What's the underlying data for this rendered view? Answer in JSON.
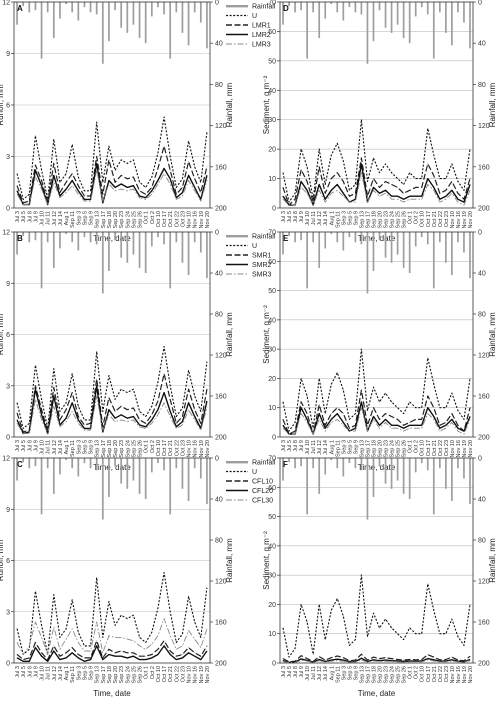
{
  "chart_data": {
    "type": "line",
    "x_axis_label": "Time, date",
    "x_categories": [
      "Jul 3",
      "Jul 5",
      "Jul 8",
      "Jul 9",
      "Jul 10",
      "Jul 11",
      "Jul 12",
      "Jul 14",
      "Aug 1",
      "Sep 11",
      "Sep 3",
      "Sep 5",
      "Sep 9",
      "Sep 13",
      "Sep 17",
      "Sep 18",
      "Sep 20",
      "Sep 23",
      "Sep 24",
      "Sep 25",
      "Sep 26",
      "Oct 1",
      "Oct 2",
      "Oct 10",
      "Oct 17",
      "Oct 21",
      "Oct 22",
      "Oct 23",
      "Nov 10",
      "Nov 16",
      "Nov 19",
      "Nov 20"
    ],
    "rainfall_mm": [
      22,
      4,
      10,
      8,
      55,
      10,
      35,
      16,
      2,
      10,
      18,
      5,
      10,
      12,
      60,
      38,
      8,
      25,
      30,
      22,
      35,
      40,
      14,
      5,
      12,
      55,
      10,
      30,
      42,
      10,
      20,
      45
    ],
    "rainfall_axis": {
      "label": "Rainfall, mm",
      "range": [
        0,
        200
      ],
      "ticks": [
        0,
        40,
        80,
        120,
        160,
        200
      ],
      "inverted": true
    },
    "panels": [
      {
        "letter": "A",
        "ylabel": "Runoff, mm",
        "ylim": [
          0,
          12
        ],
        "yticks": [
          0,
          3,
          6,
          9,
          12
        ],
        "legend": [
          "Rainfall",
          "U",
          "LMR1",
          "LMR2",
          "LMR3"
        ],
        "series": [
          {
            "name": "U",
            "values": [
              2.0,
              0.5,
              0.8,
              4.2,
              2.2,
              0.5,
              4.0,
              1.5,
              2.0,
              3.7,
              1.8,
              1.0,
              1.0,
              5.0,
              1.5,
              3.6,
              2.2,
              2.8,
              2.6,
              2.8,
              1.5,
              1.2,
              1.8,
              3.2,
              5.3,
              3.0,
              1.2,
              1.7,
              3.9,
              2.4,
              1.5,
              4.4
            ]
          },
          {
            "name": "LMR1",
            "values": [
              1.3,
              0.3,
              0.4,
              2.5,
              1.6,
              0.3,
              2.6,
              0.9,
              1.5,
              2.0,
              1.3,
              0.7,
              0.7,
              3.0,
              0.8,
              2.8,
              1.5,
              1.9,
              1.7,
              1.8,
              1.0,
              0.8,
              1.2,
              2.3,
              3.6,
              2.2,
              0.8,
              1.2,
              2.7,
              1.7,
              0.9,
              2.4
            ]
          },
          {
            "name": "LMR2",
            "values": [
              1.0,
              0.2,
              0.2,
              2.2,
              1.3,
              0.2,
              1.9,
              0.7,
              1.1,
              1.6,
              1.0,
              0.5,
              0.5,
              2.6,
              0.3,
              1.6,
              1.2,
              1.4,
              1.2,
              1.3,
              0.7,
              0.6,
              1.0,
              1.6,
              2.3,
              1.7,
              0.6,
              0.9,
              1.9,
              1.2,
              0.5,
              1.9
            ]
          },
          {
            "name": "LMR3",
            "values": [
              0.8,
              0.2,
              0.2,
              1.8,
              1.1,
              0.2,
              1.5,
              0.6,
              0.9,
              1.3,
              0.8,
              0.4,
              0.4,
              2.2,
              0.4,
              1.4,
              1.0,
              1.1,
              1.0,
              1.1,
              0.6,
              0.5,
              0.8,
              1.4,
              2.0,
              1.4,
              0.5,
              0.7,
              1.6,
              1.0,
              0.4,
              1.6
            ]
          }
        ]
      },
      {
        "letter": "D",
        "ylabel": "Sediment, g m⁻²",
        "ylim": [
          0,
          70
        ],
        "yticks": [
          0,
          10,
          20,
          30,
          40,
          50,
          60,
          70
        ],
        "legend": [],
        "series": [
          {
            "name": "U",
            "values": [
              12,
              2,
              5,
              20,
              14,
              3,
              20,
              8,
              18,
              22,
              16,
              6,
              8,
              30,
              9,
              17,
              12,
              15,
              12,
              10,
              8,
              12,
              10,
              10,
              27,
              18,
              10,
              10,
              15,
              9,
              6,
              20
            ]
          },
          {
            "name": "LMR1",
            "values": [
              7,
              1,
              3,
              13,
              9,
              2,
              14,
              5,
              10,
              12,
              9,
              4,
              5,
              17,
              4,
              10,
              7,
              9,
              8,
              7,
              5,
              6,
              7,
              7,
              15,
              11,
              5,
              6,
              9,
              5,
              3,
              10
            ]
          },
          {
            "name": "LMR2",
            "values": [
              4,
              1,
              1,
              9,
              6,
              1,
              8,
              3,
              6,
              8,
              5,
              2,
              3,
              15,
              2,
              7,
              5,
              6,
              4,
              4,
              3,
              4,
              4,
              4,
              10,
              7,
              3,
              4,
              6,
              3,
              2,
              8
            ]
          },
          {
            "name": "LMR3",
            "values": [
              3,
              1,
              1,
              7,
              5,
              1,
              6,
              2,
              5,
              6,
              4,
              2,
              2,
              12,
              2,
              6,
              4,
              5,
              3,
              3,
              2,
              3,
              3,
              3,
              8,
              6,
              2,
              3,
              5,
              2,
              1,
              6
            ]
          }
        ]
      },
      {
        "letter": "B",
        "ylabel": "Runoff, mm",
        "ylim": [
          0,
          12
        ],
        "yticks": [
          0,
          3,
          6,
          9,
          12
        ],
        "legend": [
          "Rainfall",
          "U",
          "SMR1",
          "SMR2",
          "SMR3"
        ],
        "series": [
          {
            "name": "U",
            "values": [
              2.0,
              0.5,
              0.8,
              4.2,
              2.2,
              0.5,
              4.0,
              1.5,
              2.0,
              3.7,
              1.8,
              1.0,
              1.0,
              5.0,
              1.5,
              3.6,
              2.2,
              2.8,
              2.6,
              2.8,
              1.5,
              1.2,
              1.8,
              3.2,
              5.3,
              3.0,
              1.2,
              1.7,
              3.9,
              2.4,
              1.5,
              4.4
            ]
          },
          {
            "name": "SMR1",
            "values": [
              1.4,
              0.3,
              0.4,
              3.0,
              1.6,
              0.3,
              2.9,
              1.0,
              1.6,
              2.6,
              1.2,
              0.7,
              0.8,
              3.4,
              0.6,
              2.3,
              1.5,
              1.8,
              1.6,
              1.7,
              1.0,
              0.8,
              1.3,
              2.1,
              3.7,
              2.2,
              0.8,
              1.2,
              2.8,
              1.6,
              0.8,
              2.8
            ]
          },
          {
            "name": "SMR2",
            "values": [
              1.0,
              0.2,
              0.3,
              2.8,
              1.3,
              0.2,
              2.4,
              0.7,
              1.1,
              2.0,
              1.0,
              0.5,
              0.5,
              3.0,
              0.3,
              1.6,
              1.1,
              1.3,
              1.1,
              1.2,
              0.7,
              0.6,
              1.0,
              1.6,
              2.6,
              1.5,
              0.6,
              0.9,
              2.0,
              1.2,
              0.5,
              2.1
            ]
          },
          {
            "name": "SMR3",
            "values": [
              0.8,
              0.2,
              0.2,
              2.2,
              1.0,
              0.2,
              1.8,
              0.6,
              0.9,
              1.5,
              0.8,
              0.4,
              0.4,
              2.4,
              0.4,
              1.3,
              0.9,
              1.0,
              0.9,
              1.0,
              0.6,
              0.5,
              0.8,
              1.3,
              2.0,
              1.2,
              0.5,
              0.7,
              1.6,
              1.0,
              0.4,
              1.7
            ]
          }
        ]
      },
      {
        "letter": "E",
        "ylabel": "Sediment, g m⁻²",
        "ylim": [
          0,
          70
        ],
        "yticks": [
          0,
          10,
          20,
          30,
          40,
          50,
          60,
          70
        ],
        "legend": [],
        "series": [
          {
            "name": "U",
            "values": [
              12,
              2,
              5,
              20,
              14,
              3,
              20,
              8,
              18,
              22,
              16,
              6,
              8,
              30,
              9,
              17,
              12,
              15,
              12,
              10,
              8,
              12,
              10,
              10,
              27,
              18,
              10,
              10,
              15,
              9,
              6,
              20
            ]
          },
          {
            "name": "SMR1",
            "values": [
              6,
              1,
              2,
              12,
              8,
              1,
              11,
              4,
              8,
              10,
              8,
              3,
              4,
              16,
              4,
              10,
              6,
              8,
              7,
              6,
              4,
              5,
              6,
              6,
              14,
              10,
              4,
              5,
              8,
              4,
              2,
              10
            ]
          },
          {
            "name": "SMR2",
            "values": [
              4,
              1,
              1,
              10,
              6,
              1,
              8,
              3,
              6,
              8,
              5,
              2,
              3,
              12,
              2,
              7,
              4,
              6,
              4,
              4,
              3,
              4,
              4,
              4,
              10,
              7,
              3,
              4,
              6,
              3,
              2,
              7
            ]
          },
          {
            "name": "SMR3",
            "values": [
              3,
              1,
              1,
              8,
              5,
              1,
              6,
              2,
              5,
              6,
              4,
              2,
              2,
              10,
              2,
              6,
              3,
              5,
              3,
              3,
              2,
              3,
              3,
              3,
              8,
              6,
              2,
              3,
              5,
              2,
              1,
              6
            ]
          }
        ]
      },
      {
        "letter": "C",
        "ylabel": "Runoff, mm",
        "ylim": [
          0,
          12
        ],
        "yticks": [
          0,
          3,
          6,
          9,
          12
        ],
        "legend": [
          "Rainfall",
          "U",
          "CFL10",
          "CFL20",
          "CFL30"
        ],
        "series": [
          {
            "name": "U",
            "values": [
              2.0,
              0.5,
              0.8,
              4.2,
              2.2,
              0.5,
              4.0,
              1.5,
              2.0,
              3.7,
              1.8,
              1.0,
              1.0,
              5.0,
              1.5,
              3.6,
              2.2,
              2.8,
              2.6,
              2.8,
              1.5,
              1.2,
              1.8,
              3.2,
              5.3,
              3.0,
              1.2,
              1.7,
              3.9,
              2.4,
              1.5,
              4.4
            ]
          },
          {
            "name": "CFL10",
            "values": [
              0.5,
              0.2,
              0.3,
              1.2,
              0.6,
              0.2,
              1.0,
              0.4,
              0.6,
              0.9,
              0.5,
              0.3,
              0.3,
              1.3,
              0.3,
              0.8,
              0.6,
              0.7,
              0.6,
              0.6,
              0.4,
              0.4,
              0.5,
              0.8,
              1.3,
              0.7,
              0.4,
              0.5,
              0.9,
              0.6,
              0.4,
              1.0
            ]
          },
          {
            "name": "CFL20",
            "values": [
              0.3,
              0.1,
              0.1,
              0.9,
              0.4,
              0.1,
              0.7,
              0.2,
              0.3,
              0.6,
              0.3,
              0.1,
              0.2,
              1.0,
              0.2,
              0.5,
              0.4,
              0.4,
              0.3,
              0.4,
              0.2,
              0.2,
              0.3,
              0.5,
              1.0,
              0.5,
              0.2,
              0.3,
              0.6,
              0.4,
              0.2,
              0.7
            ]
          },
          {
            "name": "CFL30",
            "values": [
              1.2,
              0.5,
              1.0,
              2.4,
              1.5,
              0.5,
              2.1,
              0.8,
              1.4,
              2.0,
              1.2,
              0.7,
              0.7,
              2.4,
              0.6,
              1.6,
              1.5,
              1.5,
              1.4,
              1.3,
              1.0,
              0.8,
              1.1,
              1.6,
              2.6,
              1.6,
              0.8,
              1.0,
              1.9,
              1.4,
              0.9,
              2.0
            ]
          }
        ]
      },
      {
        "letter": "F",
        "ylabel": "Sediment, g m⁻²",
        "ylim": [
          0,
          70
        ],
        "yticks": [
          0,
          10,
          20,
          30,
          40,
          50,
          60,
          70
        ],
        "legend": [],
        "series": [
          {
            "name": "U",
            "values": [
              12,
              2,
              5,
              20,
              14,
              3,
              20,
              8,
              18,
              22,
              16,
              6,
              8,
              30,
              9,
              17,
              12,
              15,
              12,
              10,
              8,
              12,
              10,
              10,
              27,
              18,
              10,
              10,
              15,
              9,
              6,
              20
            ]
          },
          {
            "name": "CFL10",
            "values": [
              1.5,
              0.4,
              0.6,
              2.5,
              1.5,
              0.5,
              2.2,
              1.0,
              1.8,
              2.4,
              1.8,
              0.8,
              1.0,
              3.0,
              1.0,
              2.0,
              1.5,
              1.8,
              1.5,
              1.2,
              1.0,
              1.2,
              1.1,
              1.2,
              2.8,
              2.0,
              1.1,
              1.2,
              2.0,
              1.0,
              0.8,
              2.3
            ]
          },
          {
            "name": "CFL20",
            "values": [
              0.8,
              0.2,
              0.3,
              1.4,
              0.9,
              0.3,
              1.2,
              0.5,
              1.0,
              1.3,
              1.0,
              0.4,
              0.5,
              1.6,
              0.5,
              1.1,
              0.8,
              1.0,
              0.8,
              0.7,
              0.5,
              0.7,
              0.6,
              0.7,
              1.5,
              1.1,
              0.6,
              0.7,
              1.1,
              0.6,
              0.4,
              1.2
            ]
          },
          {
            "name": "CFL30",
            "values": [
              0.5,
              0.1,
              0.2,
              0.9,
              0.6,
              0.2,
              0.8,
              0.3,
              0.6,
              0.8,
              0.6,
              0.3,
              0.3,
              1.0,
              0.3,
              0.7,
              0.5,
              0.6,
              0.5,
              0.4,
              0.3,
              0.4,
              0.4,
              0.4,
              1.0,
              0.7,
              0.4,
              0.4,
              0.7,
              0.4,
              0.3,
              0.8
            ]
          }
        ]
      }
    ]
  }
}
